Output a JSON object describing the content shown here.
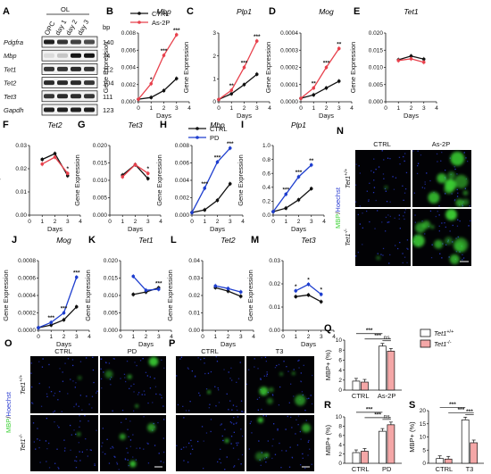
{
  "colors": {
    "ctrl": "#111111",
    "as2p": "#e8414c",
    "pd": "#1f3fcf",
    "bar_wt": "#ffffff",
    "bar_ko": "#f4a7a7",
    "green": "#3bd134",
    "blue": "#2a3bd0"
  },
  "panels": {
    "A": "A",
    "B": "B",
    "C": "C",
    "D": "D",
    "E": "E",
    "F": "F",
    "G": "G",
    "H": "H",
    "I": "I",
    "J": "J",
    "K": "K",
    "L": "L",
    "M": "M",
    "N": "N",
    "O": "O",
    "P": "P",
    "Q": "Q",
    "R": "R",
    "S": "S"
  },
  "western": {
    "col_ol": "OL",
    "col_bp": "bp",
    "lanes": [
      "OPC",
      "day 1",
      "day 2",
      "day 3"
    ],
    "rows": [
      {
        "gene": "Pdgfra",
        "bp": "140"
      },
      {
        "gene": "Mbp",
        "bp": "74"
      },
      {
        "gene": "Tet1",
        "bp": "112"
      },
      {
        "gene": "Tet2",
        "bp": "104"
      },
      {
        "gene": "Tet3",
        "bp": "111"
      },
      {
        "gene": "Gapdh",
        "bp": "123"
      }
    ]
  },
  "legend_as2p": {
    "ctrl": "CTRL",
    "treat": "As-2P"
  },
  "legend_pd": {
    "ctrl": "CTRL",
    "treat": "PD"
  },
  "legend_bar": {
    "wt": "Tet1",
    "wt_sup": "+/+",
    "ko": "Tet1",
    "ko_sup": "-/-"
  },
  "axis": {
    "x": "Days",
    "y": "Gene Expression"
  },
  "chart_data": [
    {
      "panel": "B",
      "type": "line",
      "title": "Mbp",
      "x": [
        0,
        1,
        2,
        3
      ],
      "xlim": [
        0,
        4
      ],
      "ylim": [
        0,
        0.008
      ],
      "yticks": [
        "0.000",
        "0.002",
        "0.004",
        "0.006",
        "0.008"
      ],
      "series": [
        {
          "name": "CTRL",
          "values": [
            0.0003,
            0.0005,
            0.0013,
            0.0027
          ]
        },
        {
          "name": "As-2P",
          "values": [
            0.0003,
            0.0021,
            0.0054,
            0.0078
          ]
        }
      ],
      "stars": [
        "*",
        "***",
        "***"
      ]
    },
    {
      "panel": "C",
      "type": "line",
      "title": "Plp1",
      "x": [
        0,
        1,
        2,
        3
      ],
      "xlim": [
        0,
        4
      ],
      "ylim": [
        0,
        3
      ],
      "yticks": [
        "0",
        "1",
        "2",
        "3"
      ],
      "series": [
        {
          "name": "CTRL",
          "values": [
            0.1,
            0.35,
            0.75,
            1.2
          ]
        },
        {
          "name": "As-2P",
          "values": [
            0.1,
            0.5,
            1.5,
            2.65
          ]
        }
      ],
      "stars": [
        "**",
        "***",
        "***"
      ]
    },
    {
      "panel": "D",
      "type": "line",
      "title": "Mog",
      "x": [
        0,
        1,
        2,
        3
      ],
      "xlim": [
        0,
        4
      ],
      "ylim": [
        0,
        0.0004
      ],
      "yticks": [
        "0.0000",
        "0.0001",
        "0.0002",
        "0.0003",
        "0.0004"
      ],
      "series": [
        {
          "name": "CTRL",
          "values": [
            2e-05,
            4e-05,
            8e-05,
            0.00012
          ]
        },
        {
          "name": "As-2P",
          "values": [
            2e-05,
            8e-05,
            0.0002,
            0.00031
          ]
        }
      ],
      "stars": [
        "**",
        "***",
        "**"
      ]
    },
    {
      "panel": "E",
      "type": "line",
      "title": "Tet1",
      "x": [
        1,
        2,
        3
      ],
      "xlim": [
        0,
        4
      ],
      "ylim": [
        0,
        0.02
      ],
      "yticks": [
        "0.000",
        "0.005",
        "0.010",
        "0.015",
        "0.020"
      ],
      "series": [
        {
          "name": "CTRL",
          "values": [
            0.0122,
            0.0133,
            0.0124
          ]
        },
        {
          "name": "As-2P",
          "values": [
            0.012,
            0.0125,
            0.0115
          ]
        }
      ],
      "stars": []
    },
    {
      "panel": "F",
      "type": "line",
      "title": "Tet2",
      "x": [
        1,
        2,
        3
      ],
      "xlim": [
        0,
        4
      ],
      "ylim": [
        0,
        0.03
      ],
      "yticks": [
        "0.00",
        "0.01",
        "0.02",
        "0.03"
      ],
      "series": [
        {
          "name": "CTRL",
          "values": [
            0.024,
            0.0265,
            0.017
          ]
        },
        {
          "name": "As-2P",
          "values": [
            0.022,
            0.025,
            0.018
          ]
        }
      ],
      "stars": [
        "*"
      ]
    },
    {
      "panel": "G",
      "type": "line",
      "title": "Tet3",
      "x": [
        1,
        2,
        3
      ],
      "xlim": [
        0,
        4
      ],
      "ylim": [
        0,
        0.02
      ],
      "yticks": [
        "0.000",
        "0.005",
        "0.010",
        "0.015",
        "0.020"
      ],
      "series": [
        {
          "name": "CTRL",
          "values": [
            0.0115,
            0.0145,
            0.0105
          ]
        },
        {
          "name": "As-2P",
          "values": [
            0.011,
            0.0145,
            0.012
          ]
        }
      ],
      "stars": [
        "*"
      ]
    },
    {
      "panel": "H",
      "type": "line",
      "title": "Mbp",
      "x": [
        0,
        1,
        2,
        3
      ],
      "xlim": [
        0,
        4
      ],
      "ylim": [
        0,
        0.008
      ],
      "yticks": [
        "0.000",
        "0.002",
        "0.004",
        "0.006",
        "0.008"
      ],
      "series": [
        {
          "name": "CTRL",
          "values": [
            0.0003,
            0.0006,
            0.0017,
            0.0036
          ]
        },
        {
          "name": "PD",
          "values": [
            0.0003,
            0.0031,
            0.0061,
            0.0077
          ]
        }
      ],
      "stars": [
        "***",
        "***",
        "***"
      ]
    },
    {
      "panel": "I",
      "type": "line",
      "title": "Plp1",
      "x": [
        0,
        1,
        2,
        3
      ],
      "xlim": [
        0,
        4
      ],
      "ylim": [
        0,
        1
      ],
      "yticks": [
        "0.0",
        "0.2",
        "0.4",
        "0.6",
        "0.8",
        "1.0"
      ],
      "series": [
        {
          "name": "CTRL",
          "values": [
            0.05,
            0.1,
            0.22,
            0.38
          ]
        },
        {
          "name": "PD",
          "values": [
            0.05,
            0.3,
            0.55,
            0.72
          ]
        }
      ],
      "stars": [
        "***",
        "***",
        "**"
      ]
    },
    {
      "panel": "J",
      "type": "line",
      "title": "Mog",
      "x": [
        0,
        1,
        2,
        3
      ],
      "xlim": [
        0,
        4
      ],
      "ylim": [
        0,
        0.0008
      ],
      "yticks": [
        "0.0000",
        "0.0002",
        "0.0004",
        "0.0006",
        "0.0008"
      ],
      "series": [
        {
          "name": "CTRL",
          "values": [
            3e-05,
            6e-05,
            0.00012,
            0.00027
          ]
        },
        {
          "name": "PD",
          "values": [
            3e-05,
            9e-05,
            0.0002,
            0.00061
          ]
        }
      ],
      "stars": [
        "***",
        "***",
        "***"
      ]
    },
    {
      "panel": "K",
      "type": "line",
      "title": "Tet1",
      "x": [
        1,
        2,
        3
      ],
      "xlim": [
        0,
        4
      ],
      "ylim": [
        0,
        0.02
      ],
      "yticks": [
        "0.000",
        "0.005",
        "0.010",
        "0.015",
        "0.020"
      ],
      "series": [
        {
          "name": "CTRL",
          "values": [
            0.0103,
            0.011,
            0.0122
          ]
        },
        {
          "name": "PD",
          "values": [
            0.0155,
            0.0115,
            0.0118
          ]
        }
      ],
      "stars": [
        "***"
      ]
    },
    {
      "panel": "L",
      "type": "line",
      "title": "Tet2",
      "x": [
        1,
        2,
        3
      ],
      "xlim": [
        0,
        4
      ],
      "ylim": [
        0,
        0.04
      ],
      "yticks": [
        "0.00",
        "0.01",
        "0.02",
        "0.03",
        "0.04"
      ],
      "series": [
        {
          "name": "CTRL",
          "values": [
            0.0245,
            0.0225,
            0.0195
          ]
        },
        {
          "name": "PD",
          "values": [
            0.0255,
            0.024,
            0.022
          ]
        }
      ],
      "stars": []
    },
    {
      "panel": "M",
      "type": "line",
      "title": "Tet3",
      "x": [
        1,
        2,
        3
      ],
      "xlim": [
        0,
        4
      ],
      "ylim": [
        0,
        0.03
      ],
      "yticks": [
        "0.00",
        "0.01",
        "0.02",
        "0.03"
      ],
      "series": [
        {
          "name": "CTRL",
          "values": [
            0.0145,
            0.0152,
            0.0123
          ]
        },
        {
          "name": "PD",
          "values": [
            0.017,
            0.0198,
            0.0155
          ]
        }
      ],
      "stars": [
        "*",
        "*",
        "*"
      ]
    },
    {
      "panel": "Q",
      "type": "bar",
      "ylabel": "MBP+ (%)",
      "ylim": [
        0,
        10
      ],
      "yticks": [
        "0",
        "2",
        "4",
        "6",
        "8",
        "10"
      ],
      "groups": [
        "CTRL",
        "As-2P"
      ],
      "series": [
        {
          "name": "Tet1+/+",
          "values": [
            1.8,
            8.8
          ]
        },
        {
          "name": "Tet1-/-",
          "values": [
            1.6,
            7.8
          ]
        }
      ],
      "sig": [
        "***",
        "***",
        "ns"
      ]
    },
    {
      "panel": "R",
      "type": "bar",
      "ylabel": "MBP+ (%)",
      "ylim": [
        0,
        10
      ],
      "yticks": [
        "0",
        "2",
        "4",
        "6",
        "8",
        "10"
      ],
      "groups": [
        "CTRL",
        "PD"
      ],
      "series": [
        {
          "name": "Tet1+/+",
          "values": [
            2.3,
            6.9
          ]
        },
        {
          "name": "Tet1-/-",
          "values": [
            2.6,
            8.3
          ]
        }
      ],
      "sig": [
        "***",
        "***",
        "ns"
      ]
    },
    {
      "panel": "S",
      "type": "bar",
      "ylabel": "MBP+ (%)",
      "ylim": [
        0,
        20
      ],
      "yticks": [
        "0",
        "5",
        "10",
        "15",
        "20"
      ],
      "groups": [
        "CTRL",
        "T3"
      ],
      "series": [
        {
          "name": "Tet1+/+",
          "values": [
            1.8,
            16.5
          ]
        },
        {
          "name": "Tet1-/-",
          "values": [
            1.6,
            7.8
          ]
        }
      ],
      "sig": [
        "***",
        "***",
        "***"
      ]
    }
  ],
  "micro": {
    "N": {
      "cols": [
        "CTRL",
        "As-2P"
      ],
      "rows": [
        {
          "t": "Tet1",
          "s": "+/+"
        },
        {
          "t": "Tet1",
          "s": "-/-"
        }
      ],
      "side_green": "MBP",
      "side_sep": "/",
      "side_blue": "Hoechst"
    },
    "O": {
      "cols": [
        "CTRL",
        "PD"
      ],
      "rows": [
        {
          "t": "Tet1",
          "s": "+/+"
        },
        {
          "t": "Tet1",
          "s": "-/-"
        }
      ],
      "side_green": "MBP",
      "side_sep": "/",
      "side_blue": "Hoechst"
    },
    "P": {
      "cols": [
        "CTRL",
        "T3"
      ]
    }
  }
}
